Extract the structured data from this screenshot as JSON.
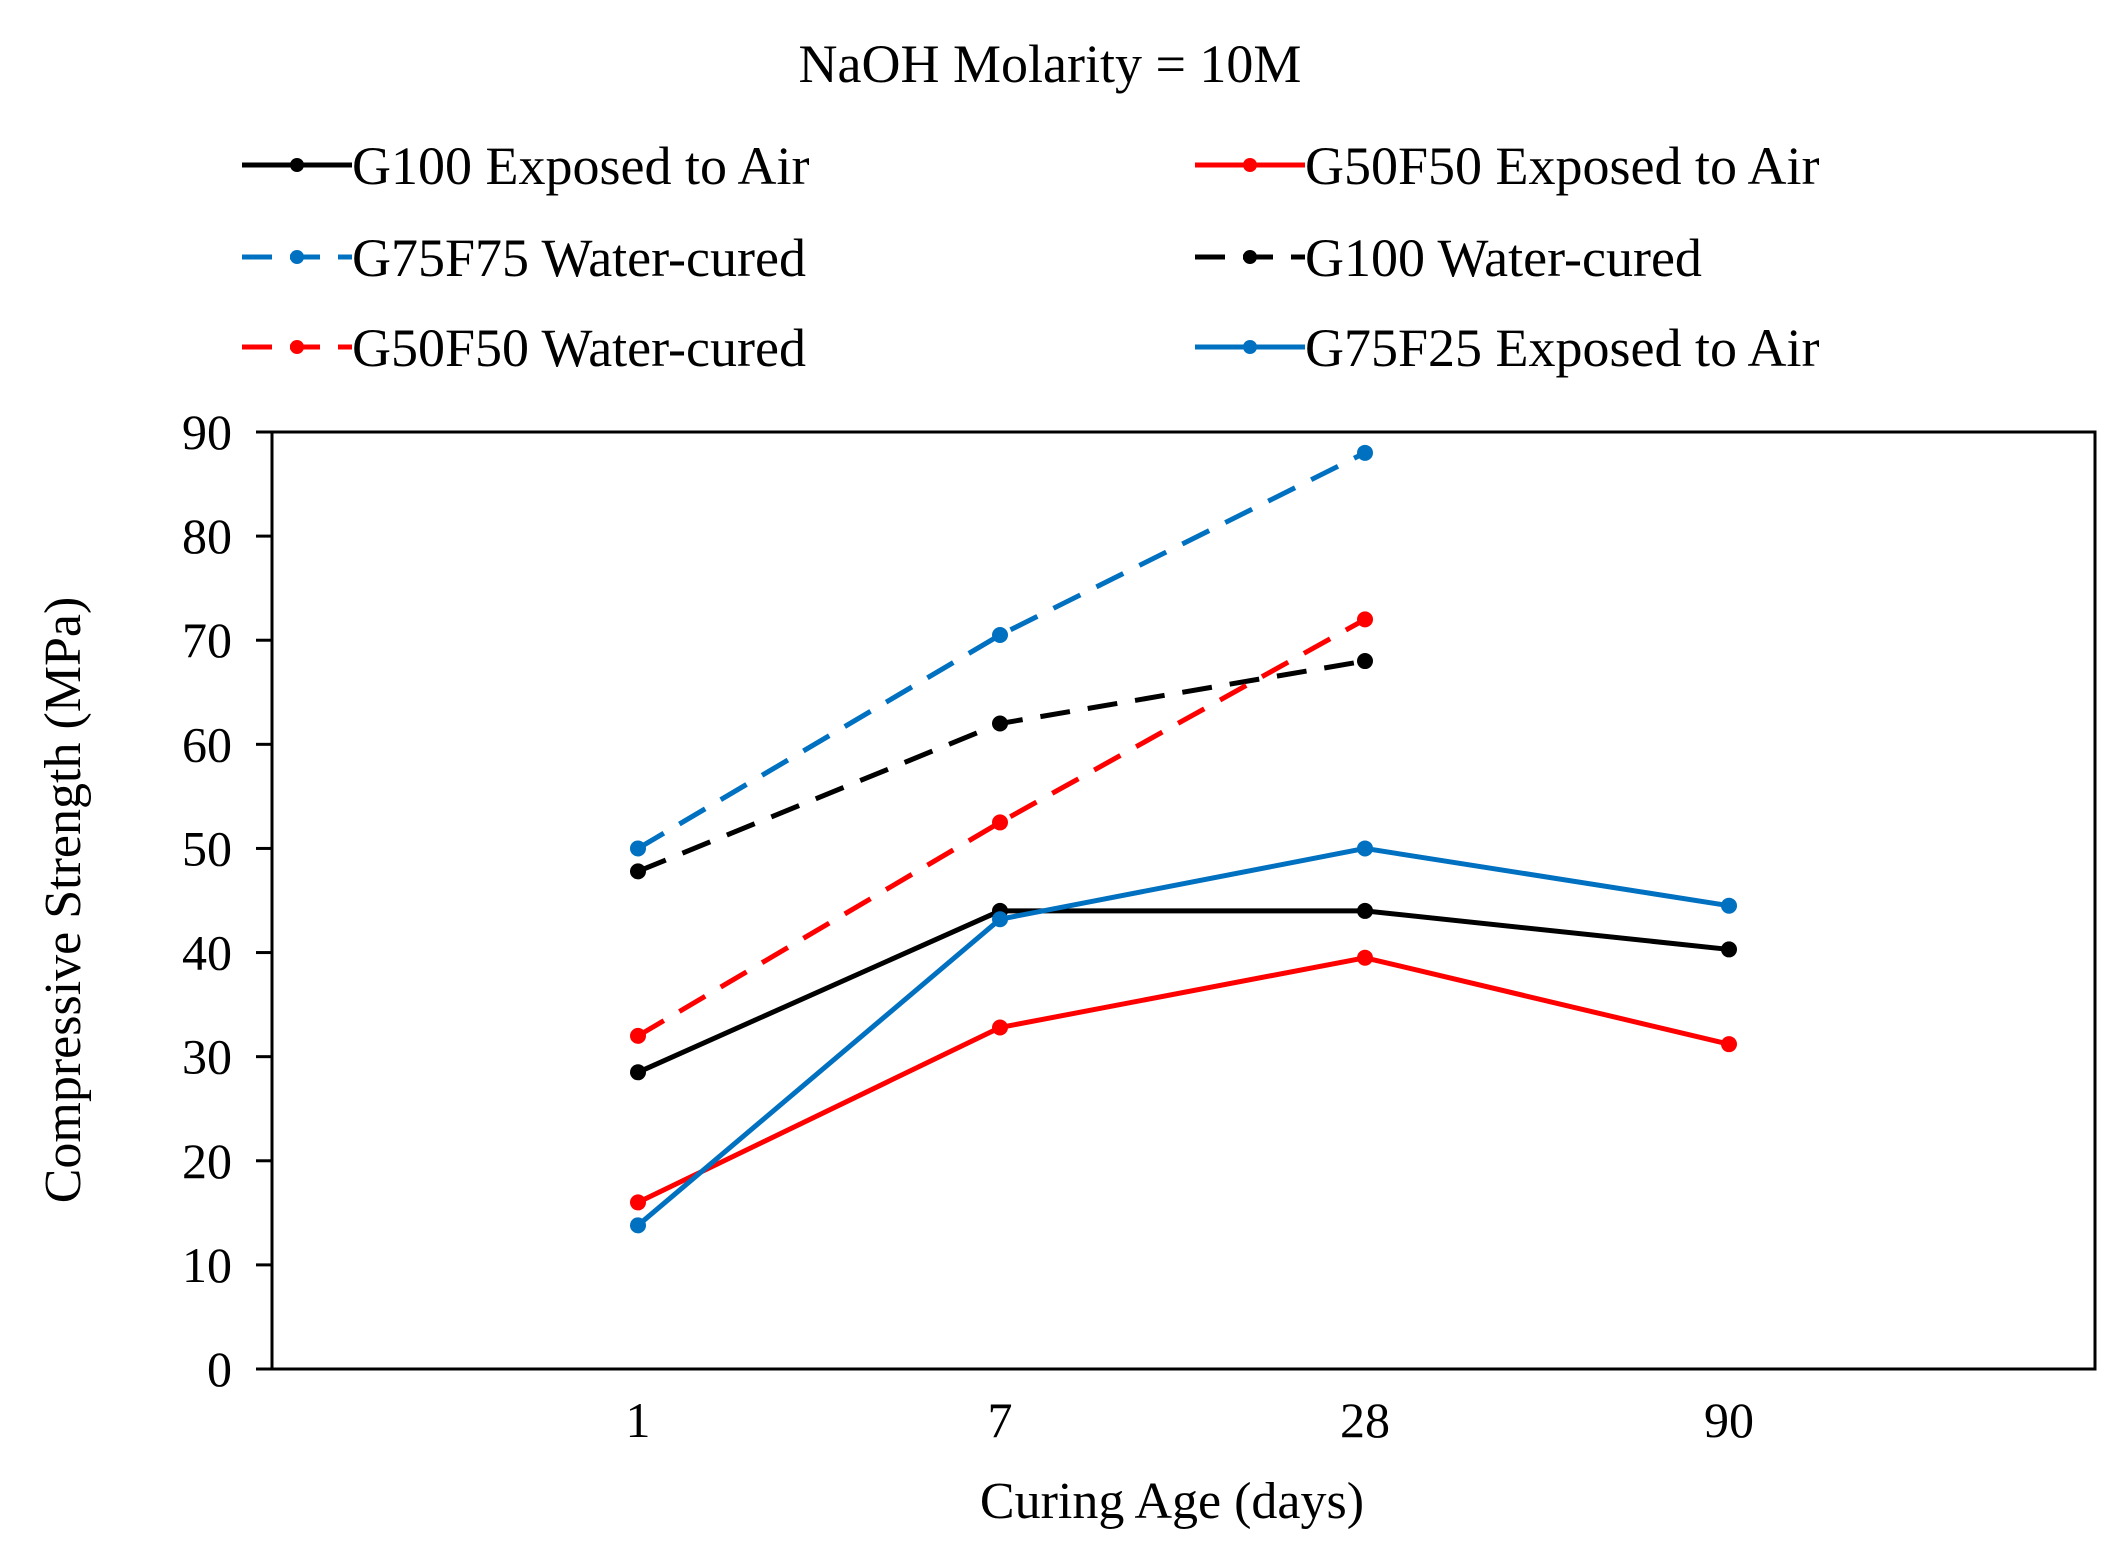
{
  "chart_data": {
    "type": "line",
    "title": "NaOH Molarity = 10M",
    "xlabel": "Curing Age (days)",
    "ylabel": "Compressive Strength (MPa)",
    "categories": [
      "1",
      "7",
      "28",
      "90"
    ],
    "ylim": [
      0,
      90
    ],
    "yticks": [
      0,
      10,
      20,
      30,
      40,
      50,
      60,
      70,
      80,
      90
    ],
    "legend_position": "top",
    "series": [
      {
        "name": "G100 Exposed to Air",
        "color": "#000000",
        "dashed": false,
        "values": [
          28.5,
          44,
          44,
          40.3
        ]
      },
      {
        "name": "G50F50 Exposed to Air",
        "color": "#ff0000",
        "dashed": false,
        "values": [
          16,
          32.8,
          39.5,
          31.2
        ]
      },
      {
        "name": "G75F75 Water-cured",
        "color": "#0070c0",
        "dashed": true,
        "values": [
          50,
          70.5,
          88,
          null
        ]
      },
      {
        "name": "G100 Water-cured",
        "color": "#000000",
        "dashed": true,
        "values": [
          47.8,
          62,
          68,
          null
        ]
      },
      {
        "name": "G50F50 Water-cured",
        "color": "#ff0000",
        "dashed": true,
        "values": [
          32,
          52.5,
          72,
          null
        ]
      },
      {
        "name": "G75F25 Exposed to Air",
        "color": "#0070c0",
        "dashed": false,
        "values": [
          13.8,
          43.2,
          50,
          44.5
        ]
      }
    ]
  }
}
